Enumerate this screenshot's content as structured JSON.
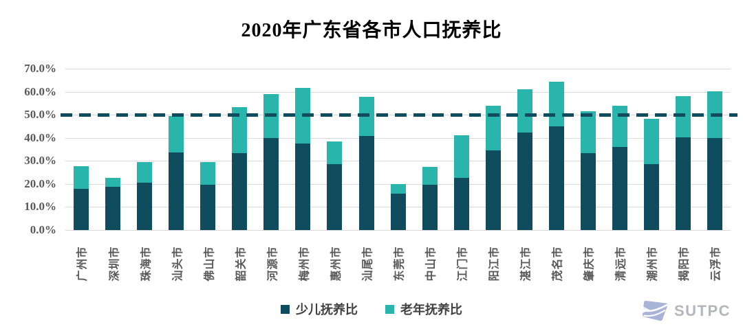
{
  "chart_data": {
    "type": "bar",
    "stacked": true,
    "title": "2020年广东省各市人口抚养比",
    "categories": [
      "广州市",
      "深圳市",
      "珠海市",
      "汕头市",
      "佛山市",
      "韶关市",
      "河源市",
      "梅州市",
      "惠州市",
      "汕尾市",
      "东莞市",
      "中山市",
      "江门市",
      "阳江市",
      "湛江市",
      "茂名市",
      "肇庆市",
      "清远市",
      "潮州市",
      "揭阳市",
      "云浮市"
    ],
    "series": [
      {
        "name": "少儿抚养比",
        "color": "#0f4d5e",
        "values": [
          17.8,
          18.7,
          20.5,
          33.6,
          19.7,
          33.3,
          40.0,
          37.6,
          28.7,
          40.8,
          15.8,
          19.6,
          22.7,
          34.6,
          42.3,
          44.9,
          33.4,
          36.0,
          28.6,
          40.1,
          40.0
        ]
      },
      {
        "name": "老年抚养比",
        "color": "#2ab5ac",
        "values": [
          9.9,
          4.0,
          9.0,
          15.9,
          9.8,
          19.9,
          19.1,
          24.0,
          9.8,
          17.0,
          4.1,
          7.8,
          18.3,
          19.4,
          18.9,
          19.5,
          18.2,
          17.8,
          19.6,
          17.9,
          20.3
        ]
      }
    ],
    "ylim": [
      0,
      70
    ],
    "y_tick_step": 10,
    "y_tick_labels": [
      "70.0%",
      "60.0%",
      "50.0%",
      "40.0%",
      "30.0%",
      "20.0%",
      "10.0%",
      "0.0%"
    ],
    "grid": true,
    "legend_position": "bottom",
    "reference_line": {
      "value": 50,
      "style": "dashed",
      "color": "#0f4d5e"
    }
  },
  "legend": {
    "items": [
      "少儿抚养比",
      "老年抚养比"
    ]
  },
  "logo": {
    "text": "SUTPC"
  },
  "colors": {
    "child": "#0f4d5e",
    "elderly": "#2ab5ac",
    "gridline": "#d9d9d9",
    "axis_text": "#595959",
    "title_text": "#000000",
    "legend_text": "#404040",
    "logo_icon": "#a9b3d8",
    "logo_text": "#b2b6bd",
    "background": "#ffffff"
  }
}
